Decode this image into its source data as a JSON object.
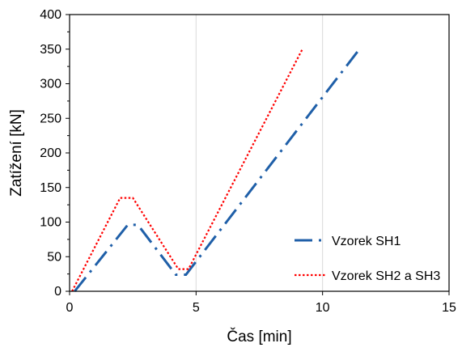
{
  "chart_data": {
    "type": "line",
    "title": "",
    "xlabel": "Čas [min]",
    "ylabel": "Zatížení [kN]",
    "xlim": [
      0,
      15
    ],
    "ylim": [
      0,
      400
    ],
    "x_ticks": [
      0,
      5,
      10,
      15
    ],
    "y_ticks": [
      0,
      50,
      100,
      150,
      200,
      250,
      300,
      350,
      400
    ],
    "x_tick_labels": [
      "0",
      "5",
      "10",
      "15"
    ],
    "y_tick_labels": [
      "0",
      "50",
      "100",
      "150",
      "200",
      "250",
      "300",
      "350",
      "400"
    ],
    "grid": "vertical major gridlines",
    "legend_position": "bottom-right",
    "series": [
      {
        "name": "Vzorek SH1",
        "color": "#1f5fa8",
        "style": "dash-dot",
        "x": [
          0.2,
          2.3,
          2.7,
          4.2,
          4.6,
          11.5
        ],
        "y": [
          0,
          96,
          96,
          24,
          24,
          352
        ]
      },
      {
        "name": "Vzorek SH2 a SH3",
        "color": "#ff0000",
        "style": "dotted",
        "x": [
          0.1,
          2.0,
          2.5,
          4.3,
          4.7,
          9.2
        ],
        "y": [
          0,
          135,
          135,
          32,
          32,
          350
        ]
      }
    ]
  }
}
